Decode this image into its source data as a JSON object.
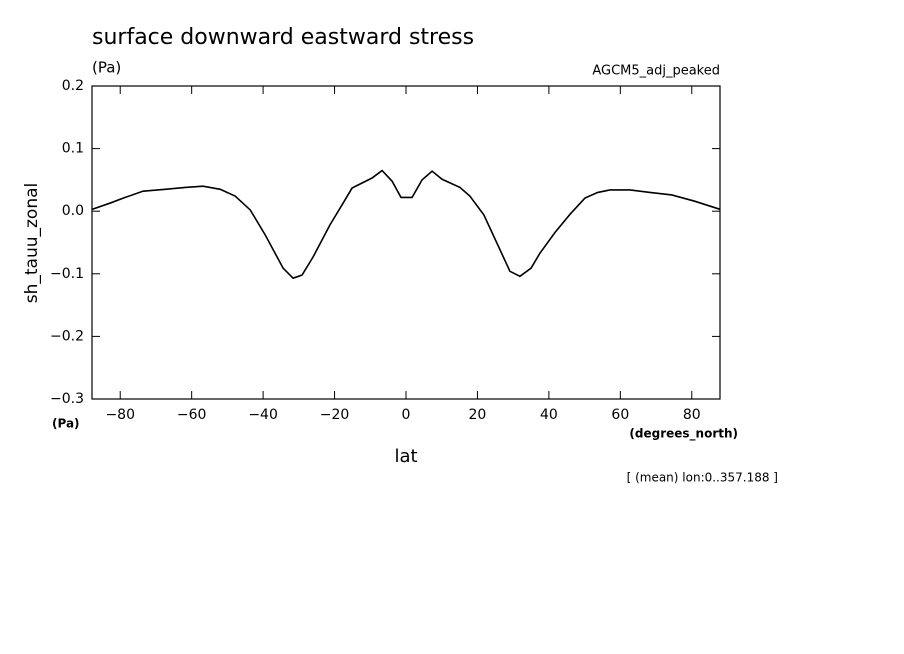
{
  "chart_data": {
    "type": "line",
    "title": "surface downward eastward stress",
    "units_label": "(Pa)",
    "model_label": "AGCM5_adj_peaked",
    "y_label": "sh_tauu_zonal",
    "y_units": "(Pa)",
    "x_label": "lat",
    "x_units": "(degrees_north)",
    "note": "[ (mean) lon:0..357.188 ]",
    "x": [
      -87.9,
      -82.8,
      -78.6,
      -73.6,
      -67.4,
      -61.8,
      -56.8,
      -52,
      -47.8,
      -43.6,
      -39.4,
      -34.4,
      -31.6,
      -29.1,
      -26,
      -21.3,
      -17.6,
      -15.1,
      -9.5,
      -6.7,
      -3.9,
      -1.4,
      1.7,
      4.5,
      7.3,
      10.1,
      15.1,
      17.9,
      21.8,
      25.7,
      29.1,
      31.9,
      35,
      37.5,
      41.7,
      45.9,
      50.1,
      53.7,
      57.1,
      62.7,
      68.3,
      74.4,
      80.8,
      87.9
    ],
    "series": [
      {
        "name": "sh_tauu_zonal",
        "color": "#000000",
        "values": [
          0.003,
          0.013,
          0.022,
          0.032,
          0.035,
          0.038,
          0.04,
          0.035,
          0.024,
          0.002,
          -0.038,
          -0.091,
          -0.107,
          -0.102,
          -0.073,
          -0.022,
          0.013,
          0.037,
          0.053,
          0.065,
          0.048,
          0.022,
          0.022,
          0.05,
          0.064,
          0.051,
          0.038,
          0.024,
          -0.006,
          -0.054,
          -0.096,
          -0.104,
          -0.091,
          -0.067,
          -0.034,
          -0.005,
          0.021,
          0.03,
          0.034,
          0.034,
          0.03,
          0.026,
          0.016,
          0.003
        ]
      }
    ],
    "xlim": [
      -87.9,
      87.9
    ],
    "xticks": [
      -80,
      -60,
      -40,
      -20,
      0,
      20,
      40,
      60,
      80
    ],
    "ylim": [
      -0.3,
      0.2
    ],
    "yticks": [
      -0.3,
      -0.2,
      -0.1,
      {
        "value": 0,
        "label": "0.0"
      },
      0.1,
      0.2
    ],
    "grid": false
  }
}
